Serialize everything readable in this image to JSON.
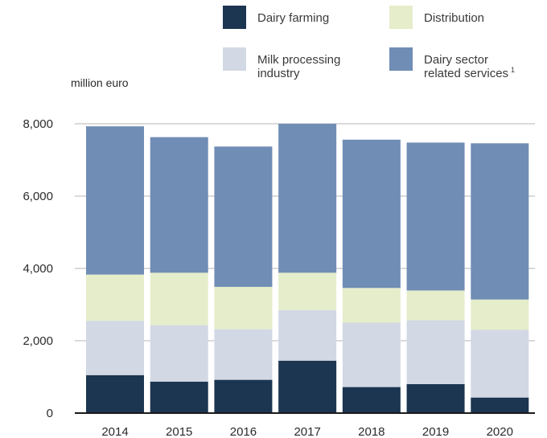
{
  "chart_data": {
    "type": "bar",
    "stacked": true,
    "ylabel": "million euro",
    "ylim": [
      0,
      8000
    ],
    "yticks": [
      0,
      2000,
      4000,
      6000,
      8000
    ],
    "ytick_labels": [
      "0",
      "2,000",
      "4,000",
      "6,000",
      "8,000"
    ],
    "grid": true,
    "legend_position": "top-right",
    "categories": [
      "2014",
      "2015",
      "2016",
      "2017",
      "2018",
      "2019",
      "2020"
    ],
    "series": [
      {
        "name": "Dairy farming",
        "color": "#1c3550",
        "values": [
          1050,
          870,
          920,
          1450,
          720,
          800,
          430
        ]
      },
      {
        "name": "Milk processing industry",
        "color": "#d2d8e4",
        "values": [
          1500,
          1560,
          1400,
          1400,
          1780,
          1770,
          1870
        ]
      },
      {
        "name": "Distribution",
        "color": "#e5edcb",
        "values": [
          1280,
          1450,
          1170,
          1030,
          960,
          820,
          840
        ]
      },
      {
        "name": "Dairy sector related services",
        "color": "#708db5",
        "values": [
          4100,
          3750,
          3880,
          4120,
          4100,
          4090,
          4320
        ]
      }
    ],
    "legend": [
      {
        "series": 0,
        "lines": [
          "Dairy farming"
        ],
        "sup": ""
      },
      {
        "series": 2,
        "lines": [
          "Distribution"
        ],
        "sup": ""
      },
      {
        "series": 1,
        "lines": [
          "Milk processing",
          "industry"
        ],
        "sup": ""
      },
      {
        "series": 3,
        "lines": [
          "Dairy sector",
          "related services"
        ],
        "sup": "1"
      }
    ]
  }
}
